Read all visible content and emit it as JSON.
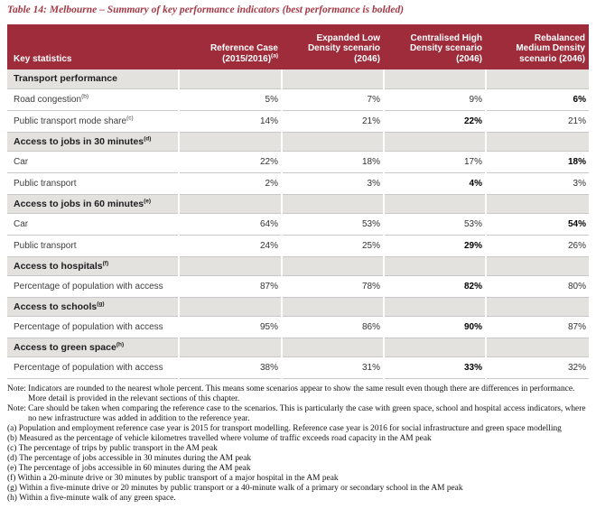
{
  "title": "Table 14: Melbourne – Summary of key performance indicators (best performance is bolded)",
  "colors": {
    "header_bg": "#9F2C3B",
    "title_text": "#A43A46",
    "section_bg": "#E4E2DF",
    "row_border": "#C8C8C8"
  },
  "table": {
    "header": {
      "key_col": "Key statistics",
      "scenario_cols": [
        {
          "lines": [
            "Reference Case",
            "(2015/2016)"
          ],
          "footnote": "a"
        },
        {
          "lines": [
            "Expanded Low",
            "Density scenario",
            "(2046)"
          ],
          "footnote": ""
        },
        {
          "lines": [
            "Centralised High",
            "Density scenario",
            "(2046)"
          ],
          "footnote": ""
        },
        {
          "lines": [
            "Rebalanced",
            "Medium Density",
            "scenario (2046)"
          ],
          "footnote": ""
        }
      ]
    },
    "sections": [
      {
        "label": "Transport performance",
        "footnote": "",
        "rows": [
          {
            "label": "Road congestion",
            "footnote": "b",
            "values": [
              "5%",
              "7%",
              "9%",
              "6%"
            ],
            "bold": 3
          },
          {
            "label": "Public transport mode share",
            "footnote": "c",
            "values": [
              "14%",
              "21%",
              "22%",
              "21%"
            ],
            "bold": 2
          }
        ]
      },
      {
        "label": "Access to jobs in 30 minutes",
        "footnote": "d",
        "rows": [
          {
            "label": "Car",
            "footnote": "",
            "values": [
              "22%",
              "18%",
              "17%",
              "18%"
            ],
            "bold": 3
          },
          {
            "label": "Public transport",
            "footnote": "",
            "values": [
              "2%",
              "3%",
              "4%",
              "3%"
            ],
            "bold": 2
          }
        ]
      },
      {
        "label": "Access to jobs in 60 minutes",
        "footnote": "e",
        "rows": [
          {
            "label": "Car",
            "footnote": "",
            "values": [
              "64%",
              "53%",
              "53%",
              "54%"
            ],
            "bold": 3
          },
          {
            "label": "Public transport",
            "footnote": "",
            "values": [
              "24%",
              "25%",
              "29%",
              "26%"
            ],
            "bold": 2
          }
        ]
      },
      {
        "label": "Access to hospitals",
        "footnote": "f",
        "rows": [
          {
            "label": "Percentage of population with access",
            "footnote": "",
            "values": [
              "87%",
              "78%",
              "82%",
              "80%"
            ],
            "bold": 2
          }
        ]
      },
      {
        "label": "Access to schools",
        "footnote": "g",
        "rows": [
          {
            "label": "Percentage of population with access",
            "footnote": "",
            "values": [
              "95%",
              "86%",
              "90%",
              "87%"
            ],
            "bold": 2
          }
        ]
      },
      {
        "label": "Access to green space",
        "footnote": "h",
        "rows": [
          {
            "label": "Percentage of population with access",
            "footnote": "",
            "values": [
              "38%",
              "31%",
              "33%",
              "32%"
            ],
            "bold": 2
          }
        ]
      }
    ]
  },
  "notes": [
    "Note: Indicators are rounded to the nearest whole percent. This means some scenarios appear to show the same result even though there are differences in performance. More detail is provided in the relevant sections of this chapter.",
    "Note: Care should be taken when comparing the reference case to the scenarios. This is particularly the case with green space, school and hospital access indicators, where no new infrastructure was added in addition to the reference year.",
    "(a) Population and employment reference case year is 2015 for transport modelling. Reference case year is 2016 for social infrastructure and green space modelling",
    "(b) Measured as the percentage of vehicle kilometres travelled where volume of traffic exceeds road capacity in the AM peak",
    "(c) The percentage of trips by public transport in the AM peak",
    "(d) The percentage of jobs accessible in 30 minutes during the AM peak",
    "(e) The percentage of jobs accessible in 60 minutes during the AM peak",
    "(f) Within a 20-minute drive or 30 minutes by public transport of a major hospital in the AM peak",
    "(g) Within a five-minute drive or 20 minutes by public transport or a 40-minute walk of a primary or secondary school in the AM peak",
    "(h) Within a five-minute walk of any green space."
  ]
}
